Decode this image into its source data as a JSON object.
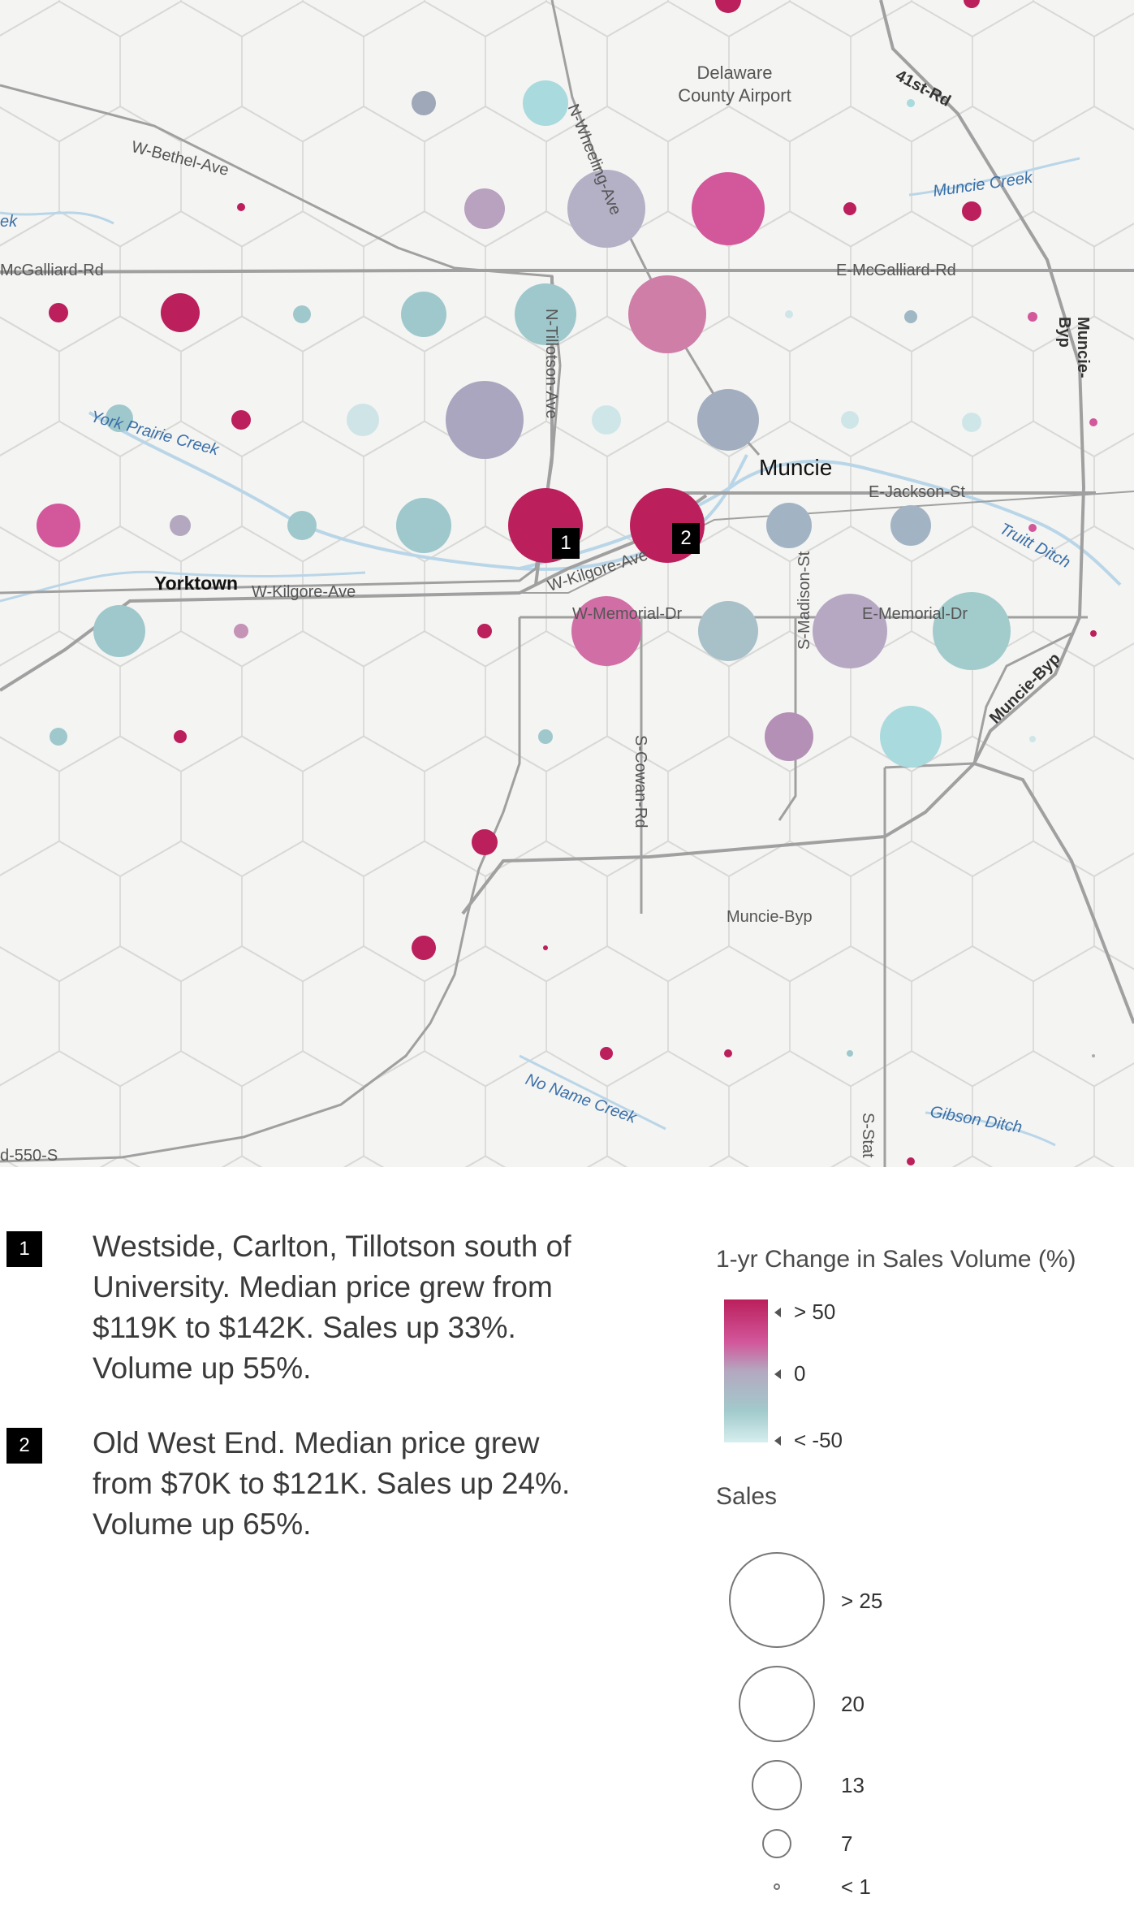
{
  "map": {
    "places": {
      "airport": [
        "Delaware",
        "County Airport"
      ],
      "muncie": "Muncie",
      "yorktown": "Yorktown"
    },
    "roads": {
      "w_bethel": "W-Bethel-Ave",
      "mcgalliard_w": "McGalliard-Rd",
      "mcgalliard_e": "E-McGalliard-Rd",
      "n_wheeling": "N-Wheeling-Ave",
      "n_tillotson": "N-Tillotson-Ave",
      "rd_41st": "41st-Rd",
      "muncie_byp_ne": "Muncie-Byp",
      "muncie_byp_e": "Muncie-Byp",
      "muncie_byp_s": "Muncie-Byp",
      "e_jackson": "E-Jackson-St",
      "w_kilgore_w": "W-Kilgore-Ave",
      "w_kilgore_e": "W-Kilgore-Ave",
      "w_memorial": "W-Memorial-Dr",
      "e_memorial": "E-Memorial-Dr",
      "s_madison": "S-Madison-St",
      "s_cowan": "S-Cowan-Rd",
      "s_sta": "S-Stat",
      "d550": "d-550-S"
    },
    "water": {
      "muncie_creek": "Muncie Creek",
      "york_prairie": "York Prairie Creek",
      "truitt": "Truitt Ditch",
      "no_name": "No Name Creek",
      "gibson": "Gibson Ditch",
      "ek": "ek"
    },
    "markers": [
      "1",
      "2"
    ]
  },
  "notes": [
    {
      "badge": "1",
      "lines": [
        "Westside, Carlton, Tillotson south of",
        "University. Median price grew from",
        "$119K to $142K. Sales up 33%.",
        "Volume up 55%."
      ]
    },
    {
      "badge": "2",
      "lines": [
        "Old West End. Median price grew",
        "from $70K to $121K. Sales up 24%.",
        "Volume up 65%."
      ]
    }
  ],
  "legend": {
    "color_title": "1-yr Change in Sales Volume (%)",
    "color_stops": [
      "> 50",
      "0",
      "< -50"
    ],
    "size_title": "Sales",
    "size_stops": [
      "> 25",
      "20",
      "13",
      "7",
      "< 1"
    ]
  },
  "colors": {
    "high": "#bb1f5c",
    "mid_high": "#d2579b",
    "neutral": "#b4a8c0",
    "low": "#9fc8cc",
    "lowest": "#a9dadd",
    "water_text": "#3a6fa8",
    "road": "#9a9a9a"
  }
}
